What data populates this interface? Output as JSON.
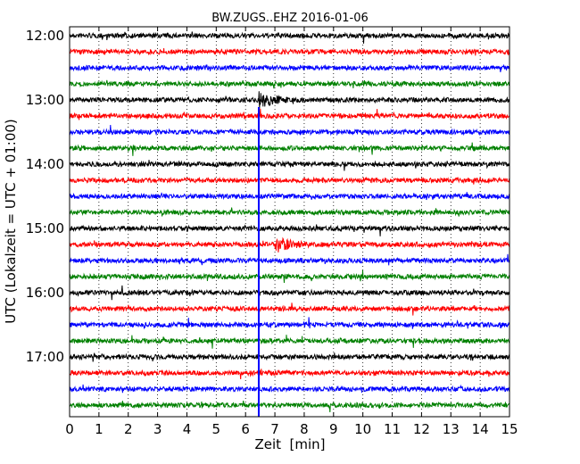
{
  "chart_data": {
    "type": "line",
    "chart_kind": "helicorder",
    "title": "BW.ZUGS..EHZ 2016-01-06",
    "xlabel": "Zeit  [min]",
    "ylabel": "UTC (Lokalzeit = UTC + 01:00)",
    "xlim": [
      0,
      15
    ],
    "x_ticks": [
      "0",
      "1",
      "2",
      "3",
      "4",
      "5",
      "6",
      "7",
      "8",
      "9",
      "10",
      "11",
      "12",
      "13",
      "14",
      "15"
    ],
    "y_ticks": [
      "12:00",
      "13:00",
      "14:00",
      "15:00",
      "16:00",
      "17:00"
    ],
    "trace_count": 24,
    "trace_interval_min": 15,
    "trace_colors": [
      "#000000",
      "#ff0000",
      "#0000ff",
      "#008000"
    ],
    "grid": true,
    "events": [
      {
        "time_min": 7.0,
        "trace_index": 13,
        "label": ""
      },
      {
        "time_min": 6.45,
        "trace_index": 4,
        "label": ""
      }
    ],
    "marker_line": {
      "x": 6.45,
      "from_trace": 5,
      "color": "#0000ff"
    }
  }
}
